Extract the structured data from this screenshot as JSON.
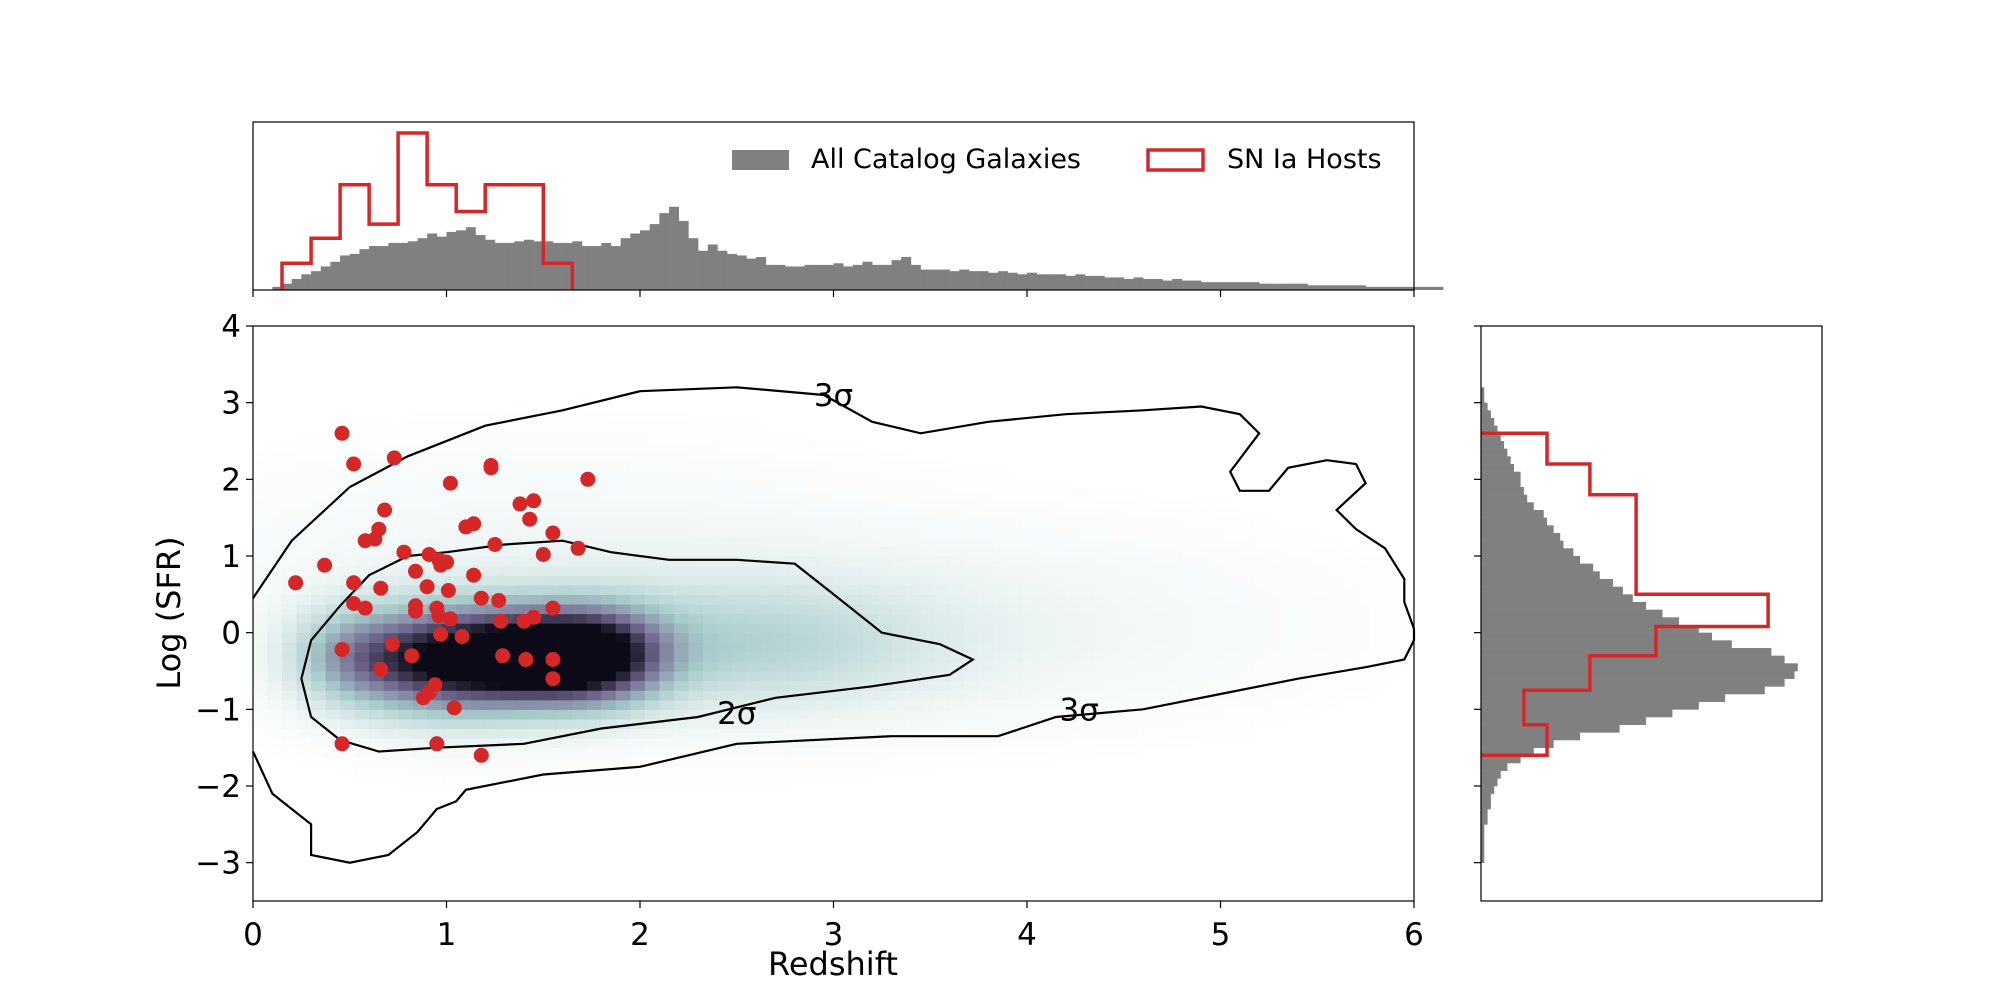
{
  "chart_data": {
    "type": "scatter",
    "xlabel": "Redshift",
    "ylabel": "Log (SFR)",
    "xlim": [
      0,
      6
    ],
    "ylim": [
      -3.5,
      4
    ],
    "xticks": [
      "0",
      "1",
      "2",
      "3",
      "4",
      "5",
      "6"
    ],
    "yticks": [
      "−3",
      "−2",
      "−1",
      "0",
      "1",
      "2",
      "3",
      "4"
    ],
    "grid": false,
    "legend": {
      "placement": "top-right of top histogram",
      "entries": [
        {
          "label": "All Catalog Galaxies",
          "style": "filled",
          "color": "#808080"
        },
        {
          "label": "SN Ia Hosts",
          "style": "step",
          "color": "#d62728"
        }
      ]
    },
    "contours": [
      {
        "label": "2σ",
        "label_pos": [
          2.5,
          -1.05
        ],
        "path": [
          [
            1.0,
            1.05
          ],
          [
            1.3,
            1.15
          ],
          [
            1.6,
            1.2
          ],
          [
            1.85,
            1.05
          ],
          [
            2.15,
            0.95
          ],
          [
            2.5,
            0.95
          ],
          [
            2.8,
            0.9
          ],
          [
            3.0,
            0.5
          ],
          [
            3.25,
            0.0
          ],
          [
            3.55,
            -0.15
          ],
          [
            3.72,
            -0.35
          ],
          [
            3.6,
            -0.55
          ],
          [
            3.2,
            -0.7
          ],
          [
            2.7,
            -0.85
          ],
          [
            2.3,
            -1.1
          ],
          [
            1.8,
            -1.25
          ],
          [
            1.4,
            -1.45
          ],
          [
            0.95,
            -1.5
          ],
          [
            0.65,
            -1.55
          ],
          [
            0.45,
            -1.4
          ],
          [
            0.3,
            -1.1
          ],
          [
            0.25,
            -0.6
          ],
          [
            0.3,
            -0.1
          ],
          [
            0.45,
            0.35
          ],
          [
            0.6,
            0.75
          ],
          [
            0.8,
            1.0
          ],
          [
            1.0,
            1.05
          ]
        ]
      },
      {
        "label": "3σ",
        "label_pos": [
          3.0,
          3.1
        ],
        "path": [
          [
            0.0,
            0.45
          ],
          [
            0.2,
            1.2
          ],
          [
            0.5,
            1.9
          ],
          [
            0.8,
            2.3
          ],
          [
            1.2,
            2.7
          ],
          [
            1.6,
            2.9
          ],
          [
            2.0,
            3.15
          ],
          [
            2.5,
            3.2
          ],
          [
            2.95,
            3.1
          ],
          [
            3.2,
            2.75
          ],
          [
            3.45,
            2.6
          ],
          [
            3.8,
            2.75
          ],
          [
            4.2,
            2.85
          ],
          [
            4.6,
            2.9
          ],
          [
            4.9,
            2.95
          ],
          [
            5.1,
            2.85
          ],
          [
            5.2,
            2.6
          ],
          [
            5.05,
            2.1
          ],
          [
            5.1,
            1.85
          ],
          [
            5.25,
            1.85
          ],
          [
            5.35,
            2.15
          ],
          [
            5.55,
            2.25
          ],
          [
            5.7,
            2.2
          ],
          [
            5.75,
            1.95
          ],
          [
            5.6,
            1.6
          ],
          [
            5.7,
            1.35
          ],
          [
            5.85,
            1.1
          ],
          [
            5.95,
            0.7
          ],
          [
            5.95,
            0.4
          ],
          [
            6.0,
            0.05
          ],
          [
            6.0,
            -0.1
          ],
          [
            5.95,
            -0.35
          ],
          [
            5.75,
            -0.45
          ],
          [
            5.4,
            -0.6
          ],
          [
            5.0,
            -0.8
          ],
          [
            4.6,
            -1.0
          ],
          [
            4.15,
            -1.1
          ],
          [
            3.85,
            -1.35
          ],
          [
            3.3,
            -1.35
          ],
          [
            2.5,
            -1.45
          ],
          [
            2.0,
            -1.75
          ],
          [
            1.5,
            -1.85
          ],
          [
            1.1,
            -2.05
          ],
          [
            1.05,
            -2.2
          ],
          [
            0.95,
            -2.3
          ],
          [
            0.85,
            -2.6
          ],
          [
            0.7,
            -2.9
          ],
          [
            0.5,
            -3.0
          ],
          [
            0.3,
            -2.9
          ],
          [
            0.3,
            -2.5
          ],
          [
            0.2,
            -2.3
          ],
          [
            0.1,
            -2.1
          ],
          [
            0.0,
            -1.55
          ]
        ]
      }
    ],
    "density": {
      "x_range": [
        0,
        6
      ],
      "y_range": [
        -3.5,
        4
      ],
      "peaks": [
        {
          "x": 1.75,
          "y": -0.3,
          "sx": 0.25,
          "sy": 0.4,
          "w": 1.0
        },
        {
          "x": 1.0,
          "y": -0.35,
          "sx": 0.35,
          "sy": 0.45,
          "w": 0.95
        },
        {
          "x": 1.4,
          "y": -0.3,
          "sx": 0.25,
          "sy": 0.4,
          "w": 0.55
        },
        {
          "x": 0.5,
          "y": -0.3,
          "sx": 0.2,
          "sy": 0.4,
          "w": 0.25
        },
        {
          "x": 2.5,
          "y": -0.15,
          "sx": 0.7,
          "sy": 0.55,
          "w": 0.22
        },
        {
          "x": 3.8,
          "y": 0.1,
          "sx": 1.2,
          "sy": 0.9,
          "w": 0.05
        },
        {
          "x": 1.5,
          "y": 0.5,
          "sx": 1.2,
          "sy": 1.2,
          "w": 0.06
        }
      ]
    },
    "series": [
      {
        "name": "SN Ia Hosts",
        "color": "#d62728",
        "x": [
          0.46,
          0.52,
          0.73,
          1.02,
          1.23,
          1.23,
          1.73,
          0.68,
          1.38,
          1.45,
          0.65,
          1.1,
          1.14,
          1.43,
          1.55,
          0.58,
          0.63,
          0.78,
          0.91,
          0.97,
          1.25,
          1.68,
          1.5,
          0.37,
          0.22,
          0.84,
          0.96,
          1.14,
          1.0,
          0.52,
          0.66,
          0.9,
          1.01,
          0.52,
          0.58,
          0.84,
          0.95,
          1.18,
          1.27,
          1.55,
          0.84,
          0.96,
          1.02,
          1.28,
          1.4,
          1.45,
          0.97,
          1.08,
          0.72,
          0.46,
          0.82,
          1.29,
          1.41,
          1.55,
          0.66,
          0.94,
          1.55,
          0.91,
          0.88,
          1.04,
          0.46,
          0.95,
          1.18
        ],
        "y": [
          2.6,
          2.2,
          2.28,
          1.95,
          2.18,
          2.15,
          2.0,
          1.6,
          1.68,
          1.72,
          1.35,
          1.38,
          1.42,
          1.48,
          1.3,
          1.2,
          1.22,
          1.05,
          1.02,
          0.88,
          1.15,
          1.1,
          1.02,
          0.88,
          0.65,
          0.8,
          0.95,
          0.75,
          0.92,
          0.65,
          0.58,
          0.6,
          0.55,
          0.38,
          0.32,
          0.35,
          0.32,
          0.45,
          0.42,
          0.32,
          0.28,
          0.22,
          0.18,
          0.15,
          0.15,
          0.2,
          -0.02,
          -0.05,
          -0.15,
          -0.22,
          -0.3,
          -0.3,
          -0.35,
          -0.35,
          -0.48,
          -0.68,
          -0.6,
          -0.78,
          -0.85,
          -0.98,
          -1.45,
          -1.45,
          -1.6
        ]
      }
    ],
    "top_histogram": {
      "all_catalog": {
        "bin_start": 0.1,
        "bin_width": 0.05,
        "heights": [
          0.02,
          0.04,
          0.07,
          0.1,
          0.12,
          0.15,
          0.18,
          0.22,
          0.23,
          0.26,
          0.28,
          0.28,
          0.3,
          0.3,
          0.31,
          0.33,
          0.36,
          0.34,
          0.37,
          0.38,
          0.4,
          0.35,
          0.32,
          0.3,
          0.3,
          0.31,
          0.32,
          0.31,
          0.31,
          0.3,
          0.3,
          0.31,
          0.28,
          0.28,
          0.3,
          0.28,
          0.33,
          0.36,
          0.38,
          0.42,
          0.49,
          0.53,
          0.44,
          0.33,
          0.25,
          0.29,
          0.25,
          0.23,
          0.22,
          0.2,
          0.21,
          0.16,
          0.16,
          0.15,
          0.15,
          0.16,
          0.16,
          0.16,
          0.17,
          0.15,
          0.16,
          0.18,
          0.16,
          0.16,
          0.19,
          0.21,
          0.16,
          0.13,
          0.13,
          0.13,
          0.12,
          0.13,
          0.12,
          0.12,
          0.11,
          0.12,
          0.11,
          0.1,
          0.11,
          0.1,
          0.1,
          0.1,
          0.09,
          0.1,
          0.09,
          0.09,
          0.08,
          0.08,
          0.07,
          0.08,
          0.07,
          0.07,
          0.06,
          0.07,
          0.06,
          0.06,
          0.05,
          0.05,
          0.05,
          0.05,
          0.05,
          0.05,
          0.04,
          0.04,
          0.04,
          0.04,
          0.04,
          0.03,
          0.03,
          0.03,
          0.03,
          0.03,
          0.03,
          0.02,
          0.02,
          0.02,
          0.02,
          0.02,
          0.02,
          0.02,
          0.02
        ]
      },
      "sn_hosts": {
        "edges": [
          0.15,
          0.3,
          0.45,
          0.6,
          0.75,
          0.9,
          1.05,
          1.2,
          1.35,
          1.5,
          1.65
        ],
        "heights": [
          0.17,
          0.33,
          0.67,
          0.42,
          1.0,
          0.67,
          0.5,
          0.67,
          0.67,
          0.17
        ]
      }
    },
    "right_histogram": {
      "all_catalog": {
        "bin_start": -3.0,
        "bin_width": 0.1,
        "heights": [
          0.01,
          0.01,
          0.01,
          0.01,
          0.01,
          0.02,
          0.02,
          0.03,
          0.03,
          0.04,
          0.05,
          0.06,
          0.08,
          0.12,
          0.16,
          0.22,
          0.3,
          0.42,
          0.5,
          0.58,
          0.66,
          0.74,
          0.86,
          0.92,
          0.95,
          0.96,
          0.92,
          0.88,
          0.76,
          0.7,
          0.66,
          0.6,
          0.55,
          0.5,
          0.46,
          0.43,
          0.4,
          0.36,
          0.34,
          0.3,
          0.28,
          0.25,
          0.24,
          0.22,
          0.2,
          0.19,
          0.16,
          0.14,
          0.13,
          0.12,
          0.12,
          0.1,
          0.09,
          0.08,
          0.07,
          0.06,
          0.05,
          0.04,
          0.03,
          0.02,
          0.01,
          0.01
        ]
      },
      "sn_hosts": {
        "edges": [
          -1.6,
          -1.2,
          -0.75,
          -0.3,
          0.08,
          0.5,
          1.35,
          1.8,
          2.2,
          2.6
        ],
        "heights": [
          0.2,
          0.13,
          0.33,
          0.53,
          0.87,
          0.47,
          0.47,
          0.33,
          0.2
        ]
      }
    }
  }
}
